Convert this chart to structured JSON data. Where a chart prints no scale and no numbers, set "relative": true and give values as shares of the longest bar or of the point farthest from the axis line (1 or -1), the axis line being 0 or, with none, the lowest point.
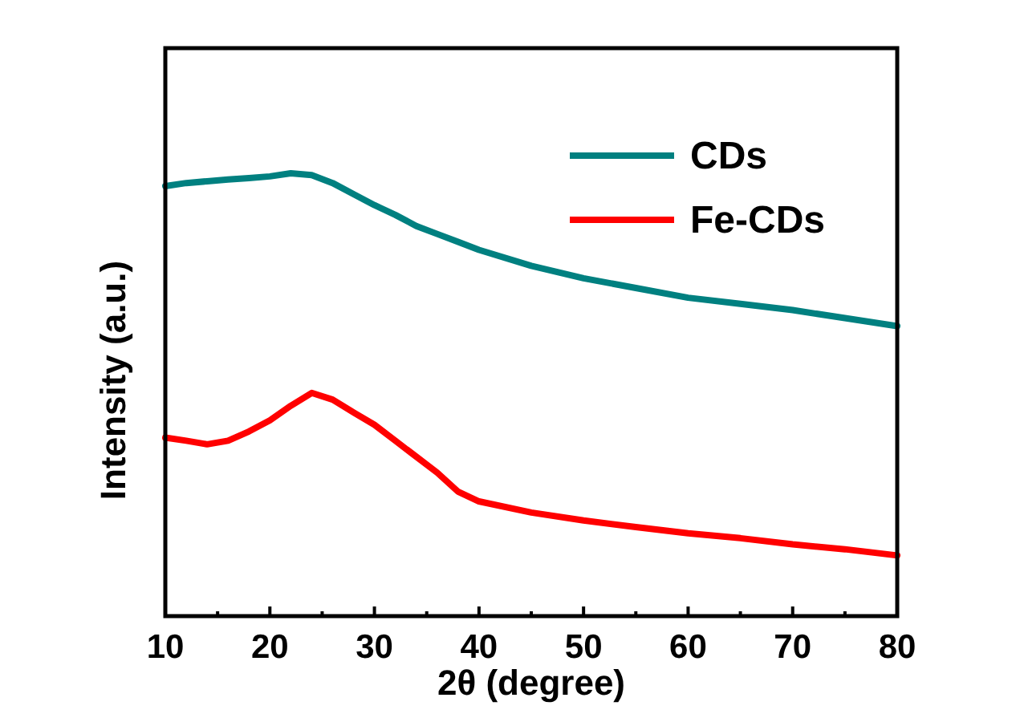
{
  "chart_data": {
    "type": "line",
    "relative": true,
    "xlabel": "2θ (degree)",
    "ylabel": "Intensity (a.u.)",
    "xlim": [
      10,
      80
    ],
    "xticks": [
      10,
      20,
      30,
      40,
      50,
      60,
      70,
      80
    ],
    "legend": "top right",
    "line_style": "solid",
    "x": [
      10,
      12,
      14,
      16,
      18,
      20,
      22,
      24,
      26,
      28,
      30,
      32,
      34,
      36,
      38,
      40,
      45,
      50,
      55,
      60,
      65,
      70,
      75,
      80
    ],
    "series": [
      {
        "name": "CDs",
        "color": "#008080",
        "values": [
          0.971,
          0.978,
          0.982,
          0.986,
          0.989,
          0.993,
          1,
          0.996,
          0.978,
          0.953,
          0.928,
          0.906,
          0.881,
          0.863,
          0.845,
          0.827,
          0.791,
          0.763,
          0.741,
          0.719,
          0.705,
          0.691,
          0.673,
          0.655
        ]
      },
      {
        "name": "Fe-CDs",
        "color": "#ff0000",
        "values": [
          0.403,
          0.396,
          0.388,
          0.396,
          0.417,
          0.442,
          0.475,
          0.504,
          0.489,
          0.46,
          0.432,
          0.396,
          0.36,
          0.324,
          0.281,
          0.259,
          0.234,
          0.216,
          0.201,
          0.187,
          0.176,
          0.162,
          0.151,
          0.137
        ]
      }
    ]
  }
}
